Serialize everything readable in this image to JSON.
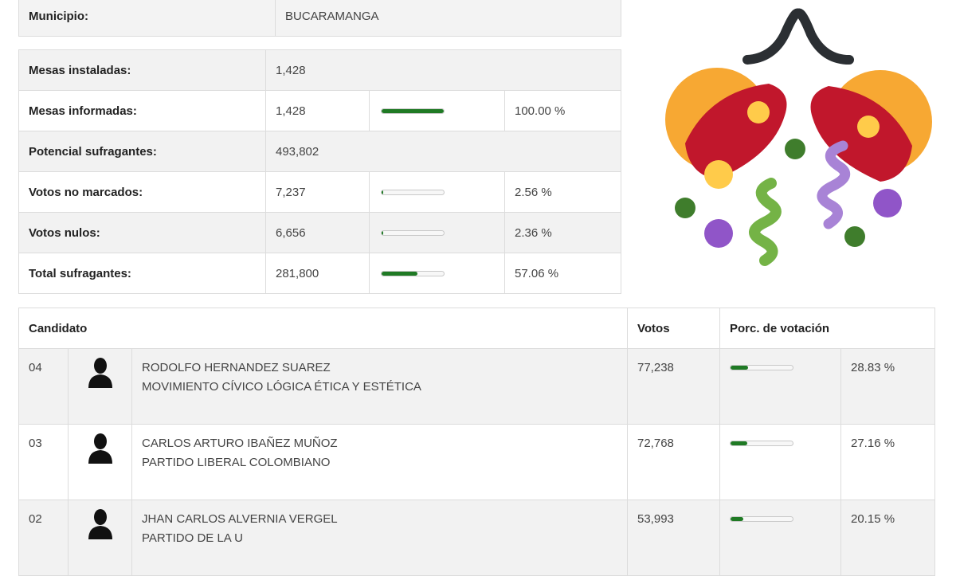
{
  "municipio": {
    "label": "Municipio:",
    "value": "BUCARAMANGA"
  },
  "stats": [
    {
      "label": "Mesas instaladas:",
      "value": "1,428",
      "percent": "",
      "bar": null
    },
    {
      "label": "Mesas informadas:",
      "value": "1,428",
      "percent": "100.00 %",
      "bar": 1.0
    },
    {
      "label": "Potencial sufragantes:",
      "value": "493,802",
      "percent": "",
      "bar": null
    },
    {
      "label": "Votos no marcados:",
      "value": "7,237",
      "percent": "2.56 %",
      "bar": 0.0256
    },
    {
      "label": "Votos nulos:",
      "value": "6,656",
      "percent": "2.36 %",
      "bar": 0.0236
    },
    {
      "label": "Total sufragantes:",
      "value": "281,800",
      "percent": "57.06 %",
      "bar": 0.5706
    }
  ],
  "candidates_table": {
    "headers": {
      "candidate": "Candidato",
      "votes": "Votos",
      "percent": "Porc. de votación"
    },
    "rows": [
      {
        "number": "04",
        "name": "RODOLFO HERNANDEZ SUAREZ",
        "party": "MOVIMIENTO CÍVICO LÓGICA ÉTICA Y ESTÉTICA",
        "votes": "77,238",
        "percent": "28.83 %",
        "bar": 0.2883
      },
      {
        "number": "03",
        "name": "CARLOS ARTURO IBAÑEZ MUÑOZ",
        "party": "PARTIDO LIBERAL COLOMBIANO",
        "votes": "72,768",
        "percent": "27.16 %",
        "bar": 0.2716
      },
      {
        "number": "02",
        "name": "JHAN CARLOS ALVERNIA VERGEL",
        "party": "PARTIDO DE LA U",
        "votes": "53,993",
        "percent": "20.15 %",
        "bar": 0.2015
      }
    ]
  },
  "decoration": {
    "icon": "confetti-ball-icon"
  },
  "colors": {
    "bar_fill": "#1f7a24",
    "row_alt": "#f2f2f2",
    "border": "#dcdcdc"
  }
}
